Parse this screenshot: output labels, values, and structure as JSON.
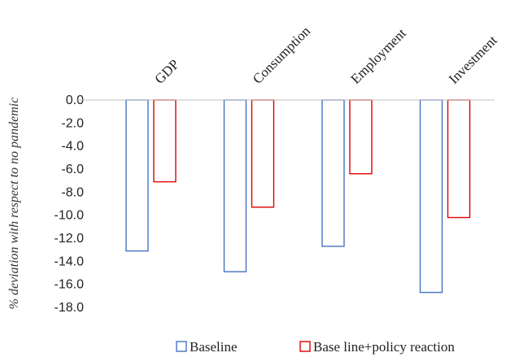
{
  "chart_data": {
    "type": "bar",
    "categories": [
      "GDP",
      "Consumption",
      "Employment",
      "Investment"
    ],
    "series": [
      {
        "name": "Baseline",
        "values": [
          -13.1,
          -14.9,
          -12.7,
          -16.7
        ],
        "color": "#4472c4"
      },
      {
        "name": "Base line+policy reaction",
        "values": [
          -7.1,
          -9.3,
          -6.4,
          -10.2
        ],
        "color": "#e00000"
      }
    ],
    "xlabel": "",
    "ylabel": "% deviation with respect to no pandemic",
    "ylim": [
      -18,
      0
    ],
    "yticks": [
      "0.0",
      "-2.0",
      "-4.0",
      "-6.0",
      "-8.0",
      "-10.0",
      "-12.0",
      "-14.0",
      "-16.0",
      "-18.0"
    ],
    "category_label_position": "top, rotated",
    "grid": false,
    "legend_position": "bottom"
  }
}
